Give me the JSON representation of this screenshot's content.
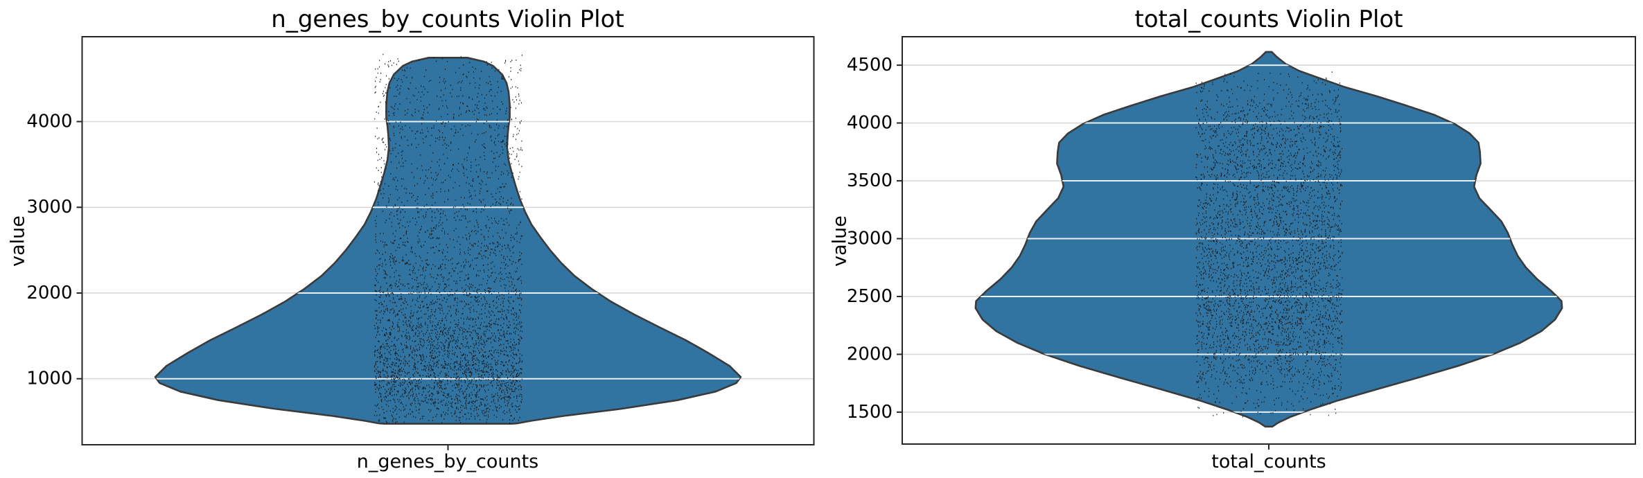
{
  "figure": {
    "background": "#ffffff"
  },
  "chart_data": [
    {
      "type": "violin",
      "title": "n_genes_by_counts Violin Plot",
      "categories": [
        "n_genes_by_counts"
      ],
      "ylabel": "value",
      "yticks": [
        1000,
        2000,
        3000,
        4000
      ],
      "ylim": [
        230,
        4990
      ],
      "grid": true,
      "legend": false,
      "violin_width_frac": 0.8,
      "colors": {
        "fill": "#3274a1",
        "edge": "#3a3a3a",
        "grid": "#d8d8d8",
        "grid_over_violin": "#ffffff",
        "points": "#141414",
        "spine": "#262626",
        "text": "#000000"
      },
      "profile": [
        [
          4745,
          0.066
        ],
        [
          4700,
          0.123
        ],
        [
          4650,
          0.154
        ],
        [
          4550,
          0.185
        ],
        [
          4450,
          0.2
        ],
        [
          4350,
          0.207
        ],
        [
          4200,
          0.211
        ],
        [
          4050,
          0.211
        ],
        [
          3950,
          0.207
        ],
        [
          3850,
          0.204
        ],
        [
          3700,
          0.202
        ],
        [
          3550,
          0.207
        ],
        [
          3400,
          0.218
        ],
        [
          3250,
          0.231
        ],
        [
          3100,
          0.245
        ],
        [
          2950,
          0.263
        ],
        [
          2800,
          0.285
        ],
        [
          2650,
          0.316
        ],
        [
          2500,
          0.349
        ],
        [
          2350,
          0.387
        ],
        [
          2200,
          0.432
        ],
        [
          2050,
          0.49
        ],
        [
          1900,
          0.557
        ],
        [
          1750,
          0.636
        ],
        [
          1600,
          0.723
        ],
        [
          1450,
          0.812
        ],
        [
          1300,
          0.89
        ],
        [
          1150,
          0.962
        ],
        [
          1020,
          1.0
        ],
        [
          950,
          0.985
        ],
        [
          850,
          0.914
        ],
        [
          750,
          0.784
        ],
        [
          650,
          0.594
        ],
        [
          570,
          0.404
        ],
        [
          510,
          0.285
        ],
        [
          480,
          0.237
        ],
        [
          475,
          0.218
        ]
      ],
      "jitter_points": {
        "band_halfwidth_frac": 0.101,
        "count": 4000,
        "value_range": [
          480,
          4785
        ]
      }
    },
    {
      "type": "violin",
      "title": "total_counts Violin Plot",
      "categories": [
        "total_counts"
      ],
      "ylabel": "value",
      "yticks": [
        1500,
        2000,
        2500,
        3000,
        3500,
        4000,
        4500
      ],
      "ylim": [
        1224,
        4746
      ],
      "grid": true,
      "legend": false,
      "violin_width_frac": 0.8,
      "colors": {
        "fill": "#3274a1",
        "edge": "#3a3a3a",
        "grid": "#d8d8d8",
        "grid_over_violin": "#ffffff",
        "points": "#141414",
        "spine": "#262626",
        "text": "#000000"
      },
      "profile": [
        [
          4615,
          0.01
        ],
        [
          4570,
          0.028
        ],
        [
          4510,
          0.058
        ],
        [
          4450,
          0.104
        ],
        [
          4390,
          0.17
        ],
        [
          4310,
          0.26
        ],
        [
          4230,
          0.37
        ],
        [
          4150,
          0.47
        ],
        [
          4070,
          0.565
        ],
        [
          3990,
          0.635
        ],
        [
          3910,
          0.685
        ],
        [
          3830,
          0.715
        ],
        [
          3750,
          0.72
        ],
        [
          3650,
          0.722
        ],
        [
          3550,
          0.708
        ],
        [
          3450,
          0.7
        ],
        [
          3350,
          0.718
        ],
        [
          3250,
          0.756
        ],
        [
          3150,
          0.793
        ],
        [
          3050,
          0.815
        ],
        [
          2950,
          0.83
        ],
        [
          2850,
          0.849
        ],
        [
          2750,
          0.877
        ],
        [
          2650,
          0.915
        ],
        [
          2550,
          0.962
        ],
        [
          2460,
          0.998
        ],
        [
          2400,
          1.0
        ],
        [
          2300,
          0.976
        ],
        [
          2200,
          0.929
        ],
        [
          2100,
          0.858
        ],
        [
          2000,
          0.764
        ],
        [
          1900,
          0.646
        ],
        [
          1800,
          0.512
        ],
        [
          1700,
          0.372
        ],
        [
          1600,
          0.235
        ],
        [
          1520,
          0.139
        ],
        [
          1460,
          0.075
        ],
        [
          1410,
          0.033
        ],
        [
          1375,
          0.012
        ]
      ],
      "jitter_points": {
        "band_halfwidth_frac": 0.1,
        "count": 4000,
        "value_range": [
          1450,
          4450
        ]
      }
    }
  ]
}
